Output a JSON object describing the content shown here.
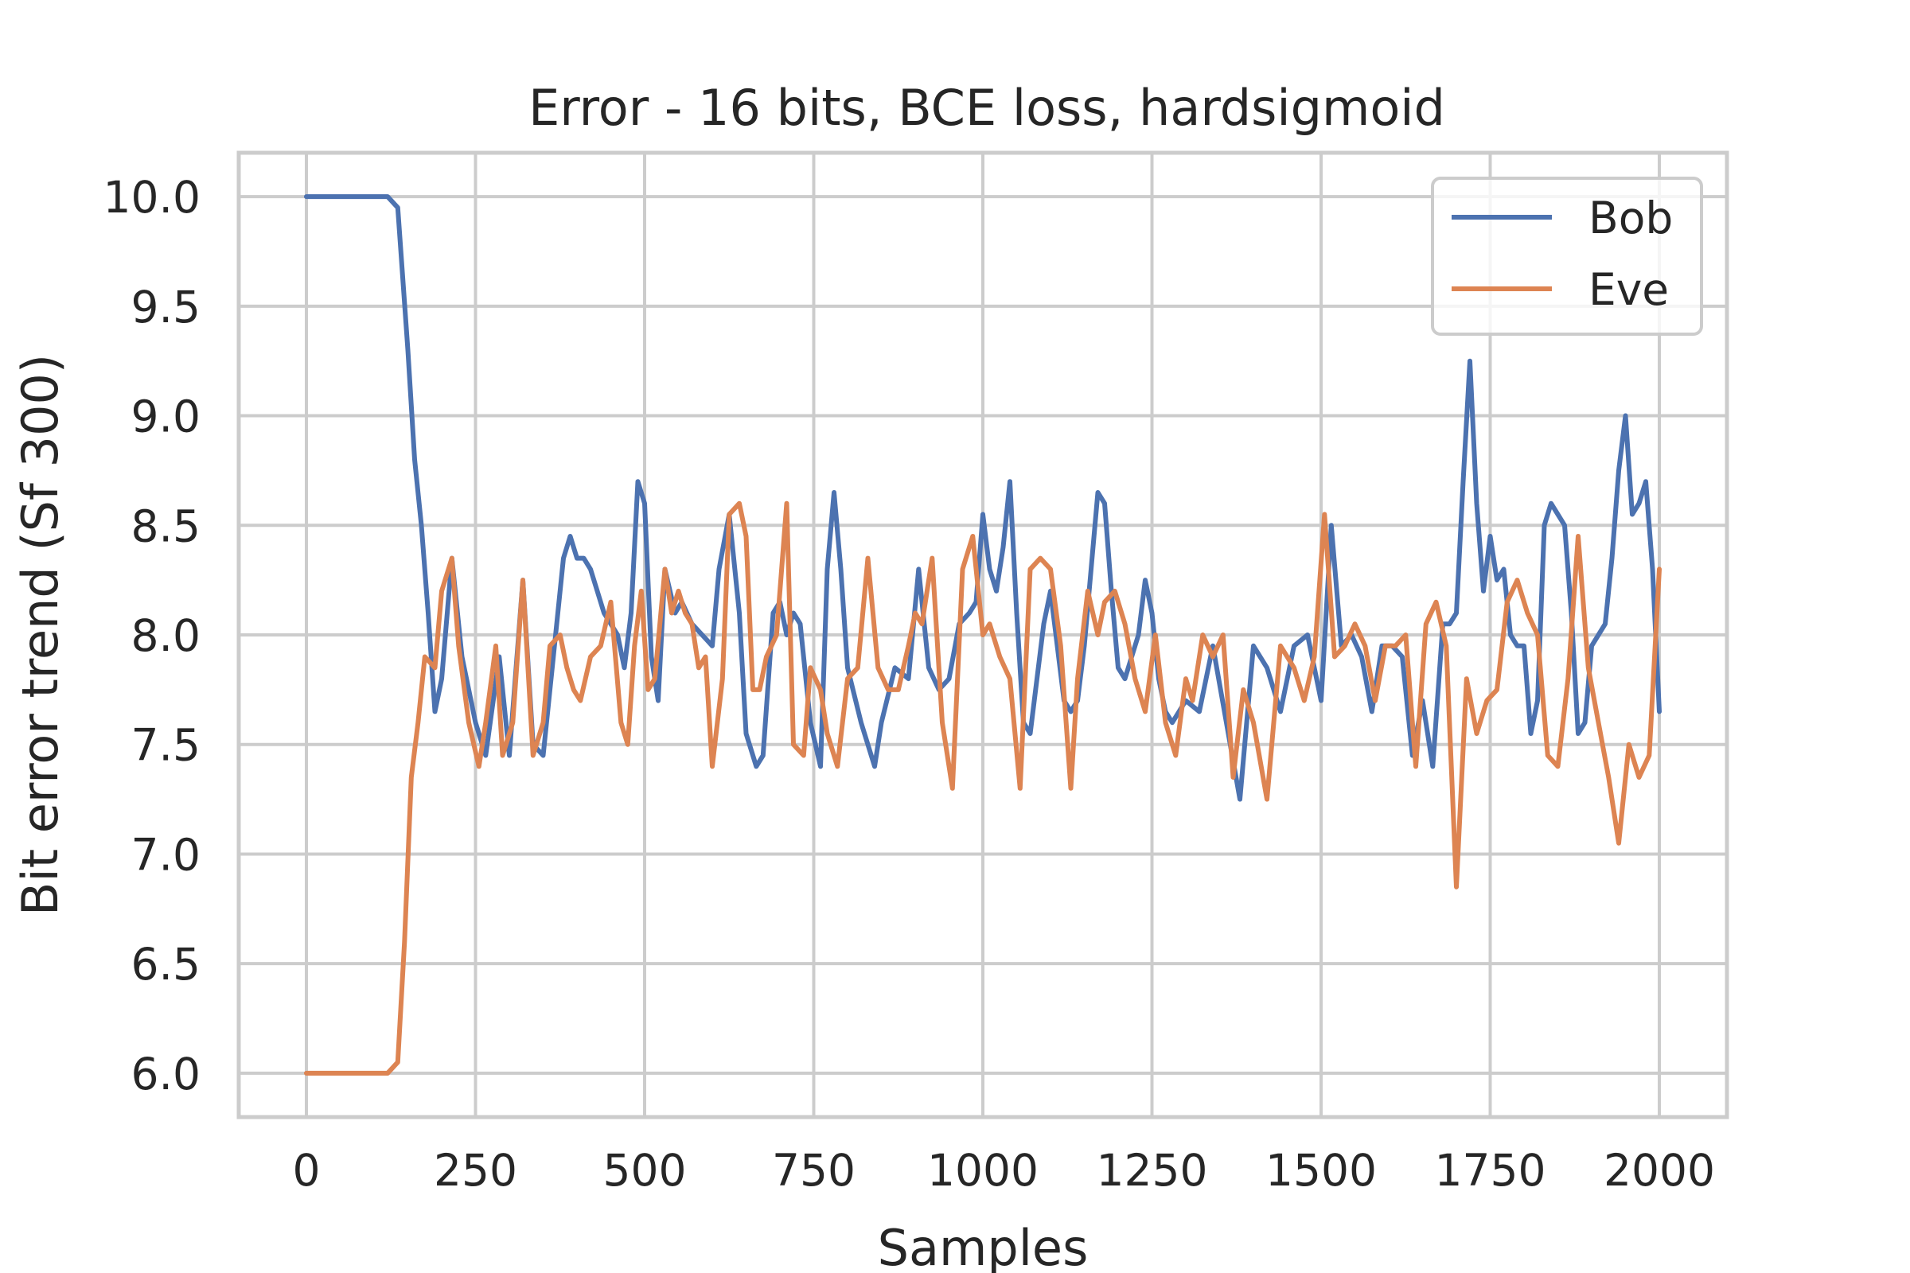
{
  "chart_data": {
    "type": "line",
    "title": "Error - 16 bits, BCE loss, hardsigmoid",
    "xlabel": "Samples",
    "ylabel": "Bit error trend (Sf 300)",
    "xlim": [
      -100,
      2100
    ],
    "ylim": [
      5.8,
      10.2
    ],
    "xticks": [
      0,
      250,
      500,
      750,
      1000,
      1250,
      1500,
      1750,
      2000
    ],
    "xtick_labels": [
      "0",
      "250",
      "500",
      "750",
      "1000",
      "1250",
      "1500",
      "1750",
      "2000"
    ],
    "yticks": [
      6.0,
      6.5,
      7.0,
      7.5,
      8.0,
      8.5,
      9.0,
      9.5,
      10.0
    ],
    "ytick_labels": [
      "6.0",
      "6.5",
      "7.0",
      "7.5",
      "8.0",
      "8.5",
      "9.0",
      "9.5",
      "10.0"
    ],
    "grid": true,
    "legend_position": "top-right",
    "series": [
      {
        "name": "Bob",
        "color": "#4c72b0",
        "x": [
          0,
          120,
          135,
          150,
          160,
          170,
          180,
          190,
          200,
          215,
          230,
          250,
          265,
          285,
          300,
          320,
          335,
          350,
          365,
          380,
          390,
          400,
          410,
          420,
          430,
          440,
          450,
          460,
          470,
          480,
          490,
          500,
          510,
          520,
          530,
          545,
          555,
          570,
          585,
          600,
          610,
          625,
          640,
          650,
          665,
          675,
          690,
          700,
          710,
          720,
          730,
          745,
          760,
          770,
          780,
          790,
          800,
          820,
          840,
          850,
          870,
          890,
          905,
          920,
          935,
          950,
          965,
          980,
          990,
          1000,
          1010,
          1020,
          1030,
          1040,
          1050,
          1060,
          1070,
          1080,
          1090,
          1100,
          1110,
          1120,
          1130,
          1140,
          1150,
          1160,
          1170,
          1180,
          1190,
          1200,
          1210,
          1220,
          1230,
          1240,
          1250,
          1260,
          1270,
          1280,
          1290,
          1300,
          1320,
          1340,
          1360,
          1380,
          1400,
          1420,
          1440,
          1460,
          1480,
          1500,
          1515,
          1530,
          1545,
          1560,
          1575,
          1590,
          1605,
          1620,
          1635,
          1650,
          1665,
          1680,
          1690,
          1700,
          1710,
          1720,
          1730,
          1740,
          1750,
          1760,
          1770,
          1780,
          1790,
          1800,
          1810,
          1820,
          1830,
          1840,
          1850,
          1860,
          1870,
          1880,
          1890,
          1900,
          1910,
          1920,
          1930,
          1940,
          1950,
          1960,
          1970,
          1980,
          1990,
          2000
        ],
        "y": [
          10.0,
          10.0,
          9.95,
          9.3,
          8.8,
          8.5,
          8.1,
          7.65,
          7.8,
          8.35,
          7.9,
          7.6,
          7.45,
          7.9,
          7.45,
          8.25,
          7.5,
          7.45,
          7.9,
          8.35,
          8.45,
          8.35,
          8.35,
          8.3,
          8.2,
          8.1,
          8.05,
          8.0,
          7.85,
          8.1,
          8.7,
          8.6,
          7.9,
          7.7,
          8.3,
          8.1,
          8.15,
          8.05,
          8.0,
          7.95,
          8.3,
          8.55,
          8.1,
          7.55,
          7.4,
          7.45,
          8.1,
          8.15,
          8.0,
          8.1,
          8.05,
          7.6,
          7.4,
          8.3,
          8.65,
          8.3,
          7.85,
          7.6,
          7.4,
          7.6,
          7.85,
          7.8,
          8.3,
          7.85,
          7.75,
          7.8,
          8.05,
          8.1,
          8.15,
          8.55,
          8.3,
          8.2,
          8.4,
          8.7,
          8.1,
          7.6,
          7.55,
          7.8,
          8.05,
          8.2,
          7.95,
          7.7,
          7.65,
          7.7,
          7.95,
          8.3,
          8.65,
          8.6,
          8.2,
          7.85,
          7.8,
          7.9,
          8.0,
          8.25,
          8.1,
          7.8,
          7.65,
          7.6,
          7.65,
          7.7,
          7.65,
          7.95,
          7.6,
          7.25,
          7.95,
          7.85,
          7.65,
          7.95,
          8.0,
          7.7,
          8.5,
          7.95,
          8.0,
          7.9,
          7.65,
          7.95,
          7.95,
          7.9,
          7.45,
          7.7,
          7.4,
          8.05,
          8.05,
          8.1,
          8.7,
          9.25,
          8.6,
          8.2,
          8.45,
          8.25,
          8.3,
          8.0,
          7.95,
          7.95,
          7.55,
          7.7,
          8.5,
          8.6,
          8.55,
          8.5,
          8.1,
          7.55,
          7.6,
          7.95,
          8.0,
          8.05,
          8.35,
          8.75,
          9.0,
          8.55,
          8.6,
          8.7,
          8.3,
          7.65
        ]
      },
      {
        "name": "Eve",
        "color": "#dd8452",
        "x": [
          0,
          120,
          135,
          145,
          155,
          165,
          175,
          190,
          200,
          215,
          225,
          240,
          255,
          265,
          280,
          290,
          305,
          320,
          335,
          350,
          360,
          375,
          385,
          395,
          405,
          420,
          435,
          450,
          465,
          475,
          485,
          495,
          505,
          515,
          530,
          540,
          550,
          560,
          570,
          580,
          590,
          600,
          615,
          625,
          640,
          650,
          660,
          670,
          680,
          695,
          710,
          720,
          735,
          745,
          760,
          770,
          785,
          800,
          815,
          830,
          845,
          860,
          875,
          890,
          900,
          910,
          925,
          940,
          955,
          970,
          985,
          1000,
          1010,
          1025,
          1040,
          1055,
          1070,
          1085,
          1100,
          1115,
          1130,
          1140,
          1155,
          1170,
          1180,
          1195,
          1210,
          1225,
          1240,
          1255,
          1270,
          1285,
          1300,
          1310,
          1325,
          1340,
          1355,
          1370,
          1385,
          1400,
          1420,
          1440,
          1460,
          1475,
          1490,
          1505,
          1520,
          1535,
          1550,
          1565,
          1580,
          1595,
          1610,
          1625,
          1640,
          1655,
          1670,
          1685,
          1700,
          1715,
          1730,
          1745,
          1760,
          1775,
          1790,
          1805,
          1820,
          1835,
          1850,
          1865,
          1880,
          1895,
          1910,
          1925,
          1940,
          1955,
          1970,
          1985,
          2000
        ],
        "y": [
          6.0,
          6.0,
          6.05,
          6.6,
          7.35,
          7.6,
          7.9,
          7.85,
          8.2,
          8.35,
          7.95,
          7.6,
          7.4,
          7.6,
          7.95,
          7.45,
          7.6,
          8.25,
          7.45,
          7.6,
          7.95,
          8.0,
          7.85,
          7.75,
          7.7,
          7.9,
          7.95,
          8.15,
          7.6,
          7.5,
          7.95,
          8.2,
          7.75,
          7.8,
          8.3,
          8.1,
          8.2,
          8.1,
          8.05,
          7.85,
          7.9,
          7.4,
          7.8,
          8.55,
          8.6,
          8.45,
          7.75,
          7.75,
          7.9,
          8.0,
          8.6,
          7.5,
          7.45,
          7.85,
          7.75,
          7.55,
          7.4,
          7.8,
          7.85,
          8.35,
          7.85,
          7.75,
          7.75,
          7.95,
          8.1,
          8.05,
          8.35,
          7.6,
          7.3,
          8.3,
          8.45,
          8.0,
          8.05,
          7.9,
          7.8,
          7.3,
          8.3,
          8.35,
          8.3,
          7.95,
          7.3,
          7.8,
          8.2,
          8.0,
          8.15,
          8.2,
          8.05,
          7.8,
          7.65,
          8.0,
          7.6,
          7.45,
          7.8,
          7.7,
          8.0,
          7.9,
          8.0,
          7.35,
          7.75,
          7.6,
          7.25,
          7.95,
          7.85,
          7.7,
          7.9,
          8.55,
          7.9,
          7.95,
          8.05,
          7.95,
          7.7,
          7.95,
          7.95,
          8.0,
          7.4,
          8.05,
          8.15,
          7.95,
          6.85,
          7.8,
          7.55,
          7.7,
          7.75,
          8.15,
          8.25,
          8.1,
          8.0,
          7.45,
          7.4,
          7.8,
          8.45,
          7.85,
          7.6,
          7.35,
          7.05,
          7.5,
          7.35,
          7.45,
          8.3
        ]
      }
    ]
  }
}
